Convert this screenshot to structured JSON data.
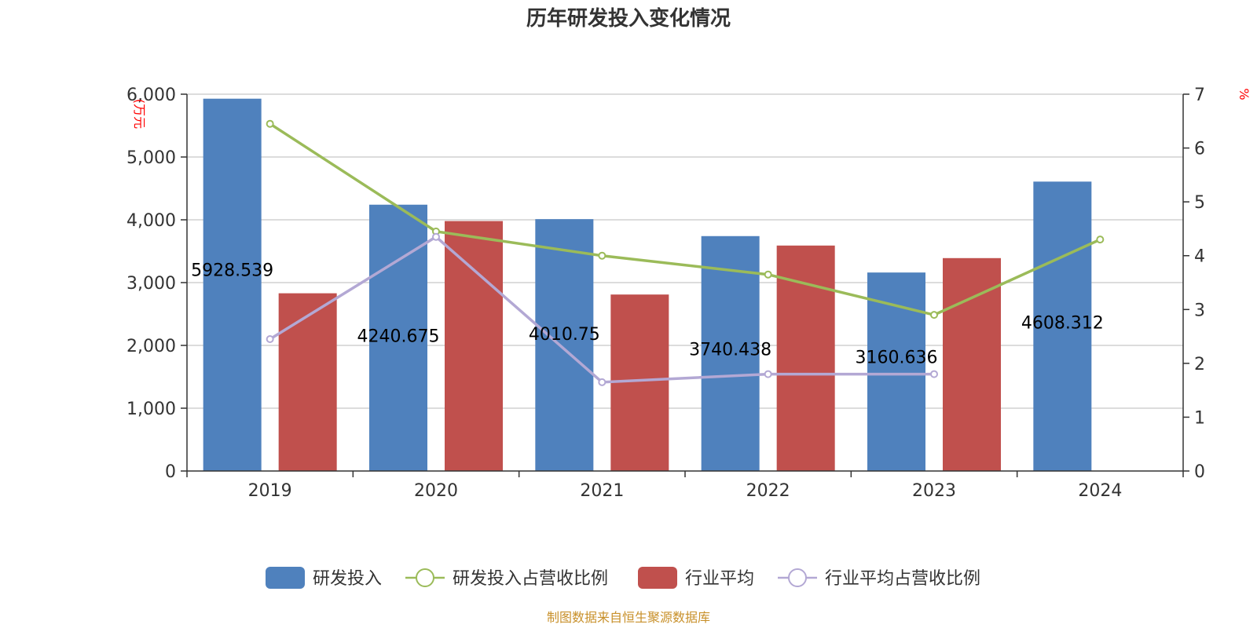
{
  "chart_data": {
    "type": "bar",
    "title": "历年研发投入变化情况",
    "categories": [
      "2019",
      "2020",
      "2021",
      "2022",
      "2023",
      "2024"
    ],
    "y_left": {
      "unit": "(万元",
      "ylim": [
        0,
        6000
      ],
      "ticks": [
        0,
        1000,
        2000,
        3000,
        4000,
        5000,
        6000
      ],
      "tick_labels": [
        "0",
        "1,000",
        "2,000",
        "3,000",
        "4,000",
        "5,000",
        "6,000"
      ]
    },
    "y_right": {
      "unit": "%",
      "ylim": [
        0,
        7
      ],
      "ticks": [
        0,
        1,
        2,
        3,
        4,
        5,
        6,
        7
      ],
      "tick_labels": [
        "0",
        "1",
        "2",
        "3",
        "4",
        "5",
        "6",
        "7"
      ]
    },
    "series": [
      {
        "name": "研发投入",
        "type": "bar",
        "axis": "left",
        "color": "#4f81bd",
        "values": [
          5928.539,
          4240.675,
          4010.75,
          3740.438,
          3160.636,
          4608.312
        ],
        "labels": [
          "5928.539",
          "4240.675",
          "4010.75",
          "3740.438",
          "3160.636",
          "4608.312"
        ]
      },
      {
        "name": "研发投入占营收比例",
        "type": "line",
        "axis": "right",
        "color": "#9bbb59",
        "values": [
          6.45,
          4.45,
          4.0,
          3.65,
          2.9,
          4.3
        ]
      },
      {
        "name": "行业平均",
        "type": "bar",
        "axis": "left",
        "color": "#c0504d",
        "values": [
          2830,
          3980,
          2810,
          3590,
          3390,
          null
        ]
      },
      {
        "name": "行业平均占营收比例",
        "type": "line",
        "axis": "right",
        "color": "#b3a8d4",
        "values": [
          2.45,
          4.35,
          1.65,
          1.8,
          1.8,
          null
        ]
      }
    ],
    "grid": true,
    "legend_position": "bottom",
    "source": "制图数据来自恒生聚源数据库"
  }
}
